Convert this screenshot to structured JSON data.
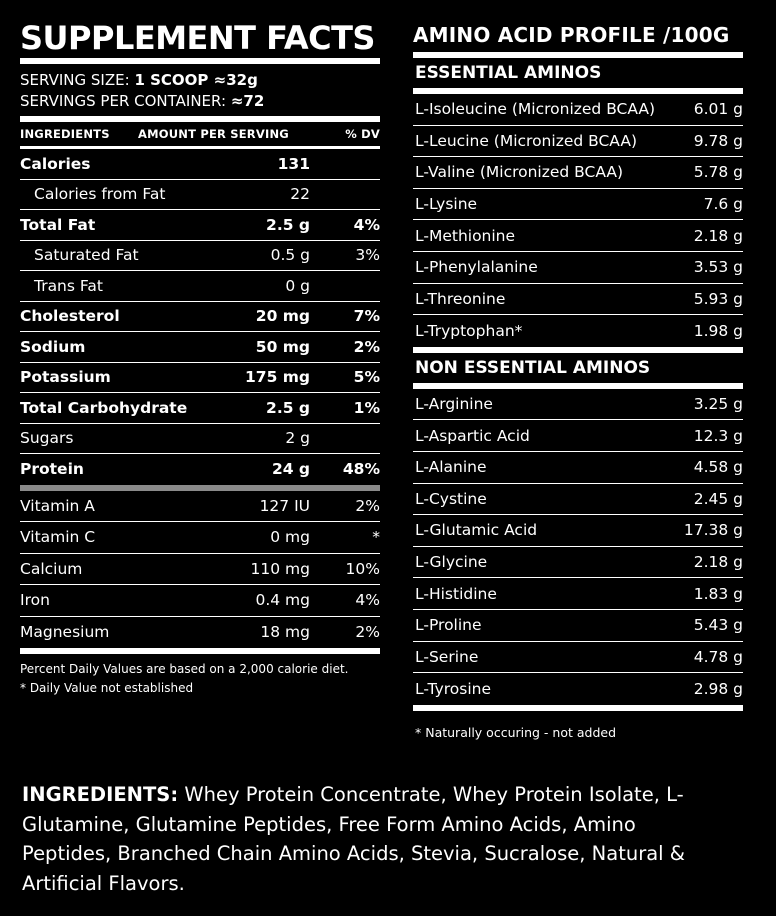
{
  "supplement": {
    "title": "SUPPLEMENT FACTS",
    "serving_size_label": "SERVING SIZE:",
    "serving_size_value": "1 SCOOP ≈32g",
    "servings_label": "SERVINGS PER CONTAINER:",
    "servings_value": "≈72",
    "headers": {
      "ingredients": "INGREDIENTS",
      "amount": "AMOUNT PER SERVING",
      "dv": "% DV"
    },
    "nutrients": [
      {
        "name": "Calories",
        "amount": "131",
        "dv": "",
        "bold": true,
        "indent": false
      },
      {
        "name": "Calories from Fat",
        "amount": "22",
        "dv": "",
        "bold": false,
        "indent": true
      },
      {
        "name": "Total Fat",
        "amount": "2.5 g",
        "dv": "4%",
        "bold": true,
        "indent": false
      },
      {
        "name": "Saturated Fat",
        "amount": "0.5 g",
        "dv": "3%",
        "bold": false,
        "indent": true
      },
      {
        "name": "Trans Fat",
        "amount": "0 g",
        "dv": "",
        "bold": false,
        "indent": true
      },
      {
        "name": "Cholesterol",
        "amount": "20 mg",
        "dv": "7%",
        "bold": true,
        "indent": false
      },
      {
        "name": "Sodium",
        "amount": "50 mg",
        "dv": "2%",
        "bold": true,
        "indent": false
      },
      {
        "name": "Potassium",
        "amount": "175 mg",
        "dv": "5%",
        "bold": true,
        "indent": false
      },
      {
        "name": "Total Carbohydrate",
        "amount": "2.5 g",
        "dv": "1%",
        "bold": true,
        "indent": false
      },
      {
        "name": "Sugars",
        "amount": "2 g",
        "dv": "",
        "bold": false,
        "indent": false
      },
      {
        "name": "Protein",
        "amount": "24 g",
        "dv": "48%",
        "bold": true,
        "indent": false
      }
    ],
    "vitamins": [
      {
        "name": "Vitamin A",
        "amount": "127 IU",
        "dv": "2%"
      },
      {
        "name": "Vitamin C",
        "amount": "0 mg",
        "dv": "*"
      },
      {
        "name": "Calcium",
        "amount": "110 mg",
        "dv": "10%"
      },
      {
        "name": "Iron",
        "amount": "0.4 mg",
        "dv": "4%"
      },
      {
        "name": "Magnesium",
        "amount": "18 mg",
        "dv": "2%"
      }
    ],
    "footnote1": "Percent Daily Values are based on a 2,000 calorie diet.",
    "footnote2": "* Daily Value not established"
  },
  "amino": {
    "title": "AMINO ACID PROFILE /100G",
    "essential_title": "ESSENTIAL AMINOS",
    "essential": [
      {
        "name": "L-Isoleucine (Micronized BCAA)",
        "amount": "6.01 g"
      },
      {
        "name": "L-Leucine (Micronized BCAA)",
        "amount": "9.78 g"
      },
      {
        "name": "L-Valine (Micronized BCAA)",
        "amount": "5.78 g"
      },
      {
        "name": "L-Lysine",
        "amount": "7.6 g"
      },
      {
        "name": "L-Methionine",
        "amount": "2.18 g"
      },
      {
        "name": "L-Phenylalanine",
        "amount": "3.53 g"
      },
      {
        "name": "L-Threonine",
        "amount": "5.93 g"
      },
      {
        "name": "L-Tryptophan*",
        "amount": "1.98 g"
      }
    ],
    "nonessential_title": "NON ESSENTIAL AMINOS",
    "nonessential": [
      {
        "name": "L-Arginine",
        "amount": "3.25 g"
      },
      {
        "name": "L-Aspartic Acid",
        "amount": "12.3 g"
      },
      {
        "name": "L-Alanine",
        "amount": "4.58 g"
      },
      {
        "name": "L-Cystine",
        "amount": "2.45 g"
      },
      {
        "name": "L-Glutamic Acid",
        "amount": "17.38 g"
      },
      {
        "name": "L-Glycine",
        "amount": "2.18 g"
      },
      {
        "name": "L-Histidine",
        "amount": "1.83 g"
      },
      {
        "name": "L-Proline",
        "amount": "5.43 g"
      },
      {
        "name": "L-Serine",
        "amount": "4.78 g"
      },
      {
        "name": "L-Tyrosine",
        "amount": "2.98 g"
      }
    ],
    "note": "* Naturally occuring - not added"
  },
  "ingredients": {
    "label": "INGREDIENTS:",
    "text": "Whey Protein Concentrate, Whey Protein Isolate, L-Glutamine, Glutamine Peptides, Free Form Amino Acids, Amino Peptides, Branched Chain Amino Acids, Stevia, Sucralose, Natural & Artificial Flavors."
  },
  "colors": {
    "background": "#000000",
    "text": "#ffffff",
    "divider_grey": "#8a8a8a"
  }
}
